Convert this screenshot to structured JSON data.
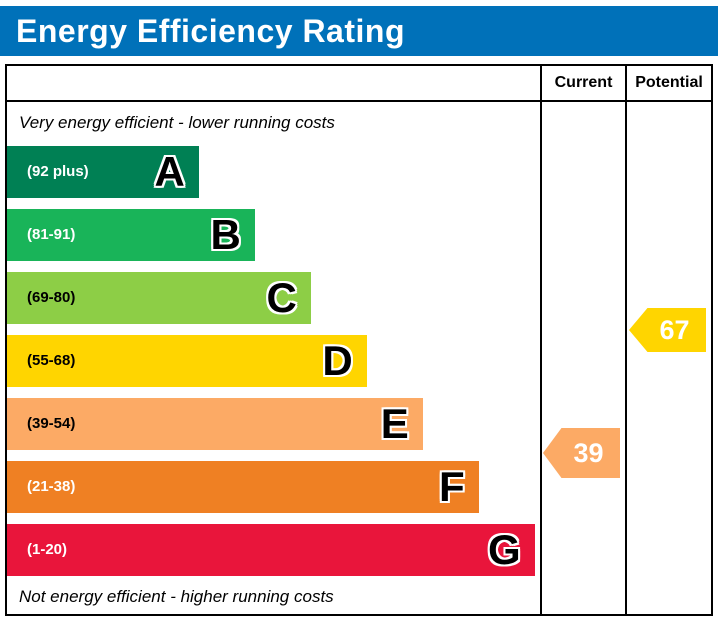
{
  "title": "Energy Efficiency Rating",
  "columns": {
    "current": "Current",
    "potential": "Potential"
  },
  "captions": {
    "top": "Very energy efficient - lower running costs",
    "bottom": "Not energy efficient - higher running costs"
  },
  "bands": [
    {
      "letter": "A",
      "range": "(92 plus)",
      "color": "#008054",
      "text_color": "#ffffff",
      "width_pct": 36
    },
    {
      "letter": "B",
      "range": "(81-91)",
      "color": "#19b459",
      "text_color": "#ffffff",
      "width_pct": 46.5
    },
    {
      "letter": "C",
      "range": "(69-80)",
      "color": "#8dce46",
      "text_color": "#000000",
      "width_pct": 57
    },
    {
      "letter": "D",
      "range": "(55-68)",
      "color": "#ffd500",
      "text_color": "#000000",
      "width_pct": 67.5
    },
    {
      "letter": "E",
      "range": "(39-54)",
      "color": "#fcaa65",
      "text_color": "#000000",
      "width_pct": 78
    },
    {
      "letter": "F",
      "range": "(21-38)",
      "color": "#ef8023",
      "text_color": "#ffffff",
      "width_pct": 88.5
    },
    {
      "letter": "G",
      "range": "(1-20)",
      "color": "#e9153b",
      "text_color": "#ffffff",
      "width_pct": 99
    }
  ],
  "ratings": {
    "current": {
      "value": "39",
      "color": "#fcaa65"
    },
    "potential": {
      "value": "67",
      "color": "#ffd500"
    }
  },
  "chart_data": {
    "type": "bar",
    "title": "Energy Efficiency Rating",
    "categories": [
      "A",
      "B",
      "C",
      "D",
      "E",
      "F",
      "G"
    ],
    "ranges": [
      "92 plus",
      "81-91",
      "69-80",
      "55-68",
      "39-54",
      "21-38",
      "1-20"
    ],
    "band_colors": [
      "#008054",
      "#19b459",
      "#8dce46",
      "#ffd500",
      "#fcaa65",
      "#ef8023",
      "#e9153b"
    ],
    "values": {
      "current": 39,
      "potential": 67
    },
    "scale": [
      1,
      100
    ],
    "annotations": [
      "Very energy efficient - lower running costs",
      "Not energy efficient - higher running costs"
    ],
    "legend_position": "right-columns"
  }
}
